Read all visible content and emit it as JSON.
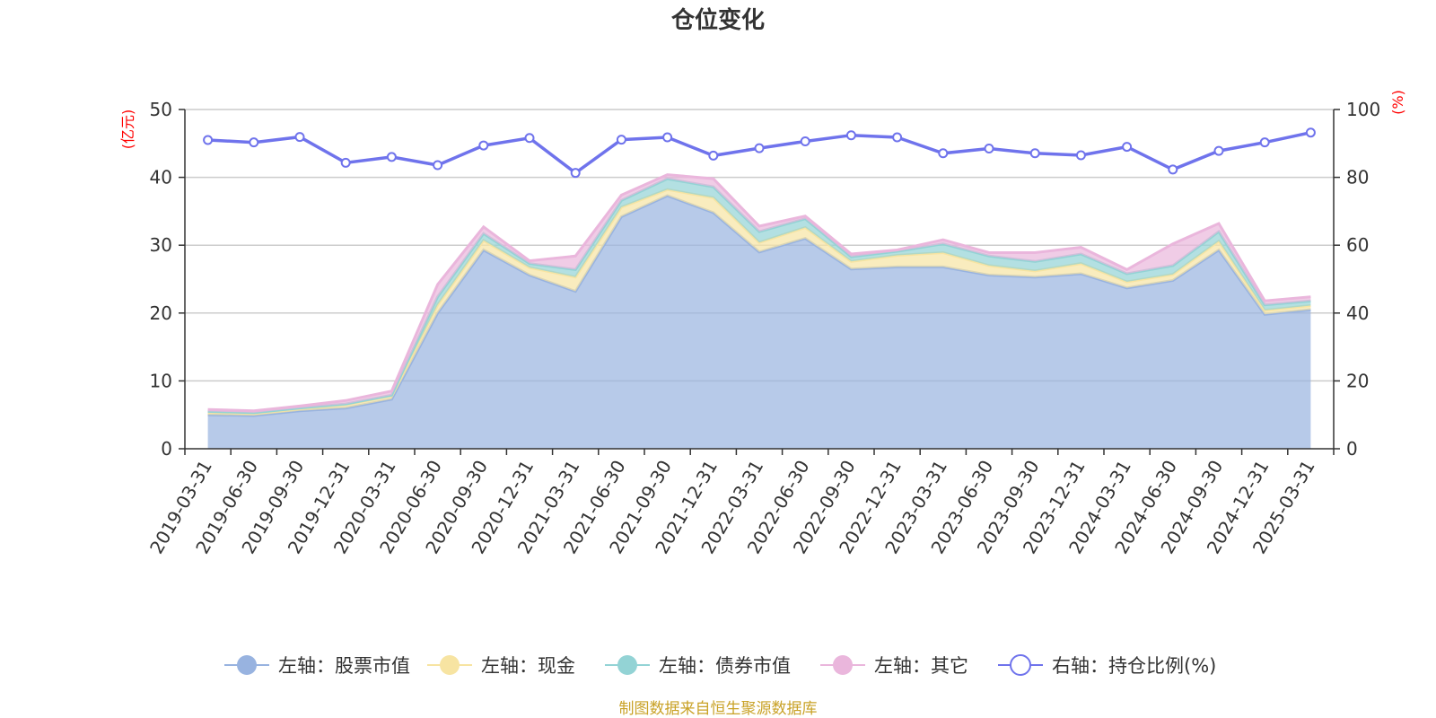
{
  "chart_data": {
    "type": "area",
    "title": "仓位变化",
    "left_axis": {
      "unit": "(亿元)",
      "ylim": [
        0,
        50
      ],
      "ticks": [
        0,
        10,
        20,
        30,
        40,
        50
      ]
    },
    "right_axis": {
      "unit": "(%)",
      "ylim": [
        0,
        100
      ],
      "ticks": [
        0,
        20,
        40,
        60,
        80,
        100
      ]
    },
    "categories": [
      "2019-03-31",
      "2019-06-30",
      "2019-09-30",
      "2019-12-31",
      "2020-03-31",
      "2020-06-30",
      "2020-09-30",
      "2020-12-31",
      "2021-03-31",
      "2021-06-30",
      "2021-09-30",
      "2021-12-31",
      "2022-03-31",
      "2022-06-30",
      "2022-09-30",
      "2022-12-31",
      "2023-03-31",
      "2023-06-30",
      "2023-09-30",
      "2023-12-31",
      "2024-03-31",
      "2024-06-30",
      "2024-09-30",
      "2024-12-31",
      "2025-03-31"
    ],
    "series": [
      {
        "name": "左轴：股票市值",
        "axis": "left",
        "stack": true,
        "color": "#98b3e0",
        "values": [
          5.0,
          4.9,
          5.6,
          6.0,
          7.3,
          20.0,
          29.3,
          25.6,
          23.2,
          34.2,
          37.3,
          34.8,
          29.0,
          31.0,
          26.5,
          26.8,
          26.8,
          25.6,
          25.3,
          25.8,
          23.7,
          24.8,
          29.3,
          19.8,
          20.5
        ]
      },
      {
        "name": "左轴：现金",
        "axis": "left",
        "stack": true,
        "color": "#f7e4a2",
        "values": [
          0.4,
          0.3,
          0.3,
          0.5,
          0.5,
          1.2,
          1.4,
          1.1,
          2.1,
          1.4,
          0.9,
          2.2,
          1.4,
          1.6,
          1.1,
          1.7,
          2.1,
          1.4,
          0.9,
          1.5,
          0.9,
          0.9,
          1.3,
          0.6,
          0.6
        ]
      },
      {
        "name": "左轴：债券市值",
        "axis": "left",
        "stack": true,
        "color": "#93d3d5",
        "values": [
          0.1,
          0.1,
          0.1,
          0.1,
          0.1,
          1.2,
          1.0,
          0.6,
          1.1,
          1.0,
          1.6,
          1.6,
          1.6,
          1.3,
          0.7,
          0.6,
          1.3,
          1.4,
          1.4,
          1.4,
          1.2,
          1.3,
          1.4,
          0.8,
          0.7
        ]
      },
      {
        "name": "左轴：其它",
        "axis": "left",
        "stack": true,
        "color": "#eab6dc",
        "values": [
          0.3,
          0.3,
          0.3,
          0.5,
          0.6,
          1.8,
          1.0,
          0.4,
          2.0,
          0.8,
          0.6,
          1.2,
          0.8,
          0.4,
          0.4,
          0.2,
          0.6,
          0.5,
          1.3,
          1.0,
          0.6,
          3.2,
          1.2,
          0.6,
          0.6
        ]
      },
      {
        "name": "右轴：持仓比例(%)",
        "axis": "right",
        "stack": false,
        "color": "#6f73ec",
        "values": [
          91.0,
          90.3,
          91.9,
          84.3,
          86.0,
          83.6,
          89.4,
          91.6,
          81.3,
          91.1,
          91.8,
          86.4,
          88.6,
          90.6,
          92.4,
          91.8,
          87.1,
          88.5,
          87.1,
          86.5,
          89.0,
          82.3,
          87.8,
          90.3,
          93.2
        ]
      }
    ]
  },
  "source_note": "制图数据来自恒生聚源数据库",
  "colors": {
    "grid": "#cccccc",
    "axis": "#333333",
    "unit": "#ff0000",
    "source": "#c9a227"
  }
}
